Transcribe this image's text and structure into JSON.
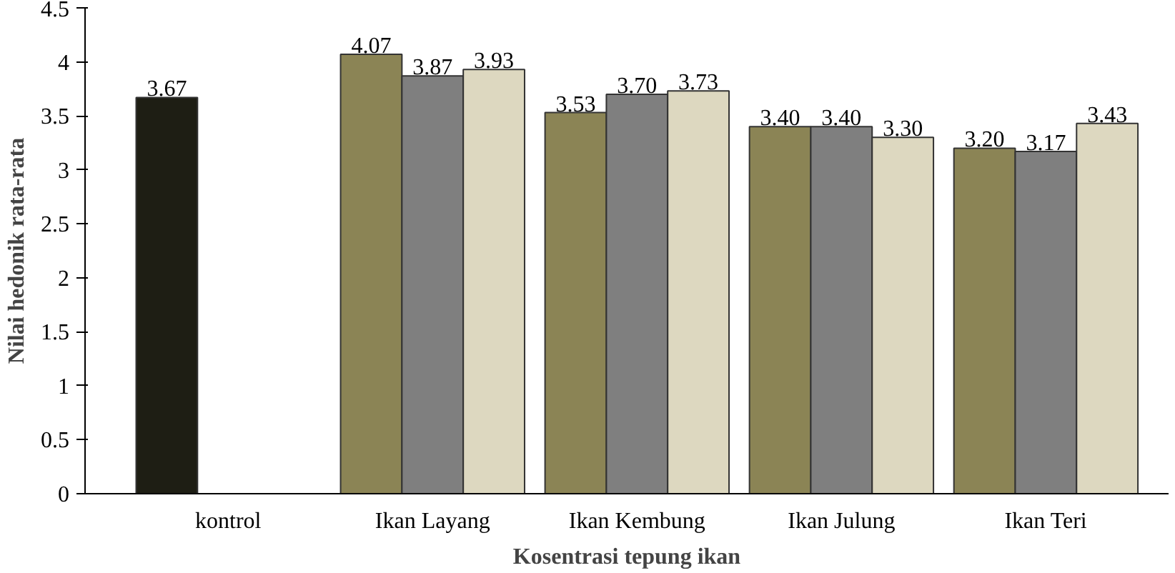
{
  "chart_data": {
    "type": "bar",
    "xlabel": "Kosentrasi tepung ikan",
    "ylabel": "Nilai hedonik rata-rata",
    "categories": [
      "kontrol",
      "Ikan Layang",
      "Ikan Kembung",
      "Ikan Julung",
      "Ikan Teri"
    ],
    "series": [
      {
        "values": [
          3.67,
          4.07,
          3.53,
          3.4,
          3.2
        ],
        "value_labels": [
          "3.67",
          "4.07",
          "3.53",
          "3.40",
          "3.20"
        ],
        "colors": [
          "#1e1e14",
          "#8b8455",
          "#8b8455",
          "#8b8455",
          "#8b8455"
        ]
      },
      {
        "color": "#7f7f7f",
        "values": [
          null,
          3.87,
          3.7,
          3.4,
          3.17
        ],
        "value_labels": [
          null,
          "3.87",
          "3.70",
          "3.40",
          "3.17"
        ]
      },
      {
        "color": "#ddd8c0",
        "values": [
          null,
          3.93,
          3.73,
          3.3,
          3.43
        ],
        "value_labels": [
          null,
          "3.93",
          "3.73",
          "3.30",
          "3.43"
        ]
      }
    ],
    "ylim": [
      0,
      4.5
    ],
    "yticks": [
      0,
      0.5,
      1,
      1.5,
      2,
      2.5,
      3,
      3.5,
      4,
      4.5
    ],
    "grid": false
  }
}
